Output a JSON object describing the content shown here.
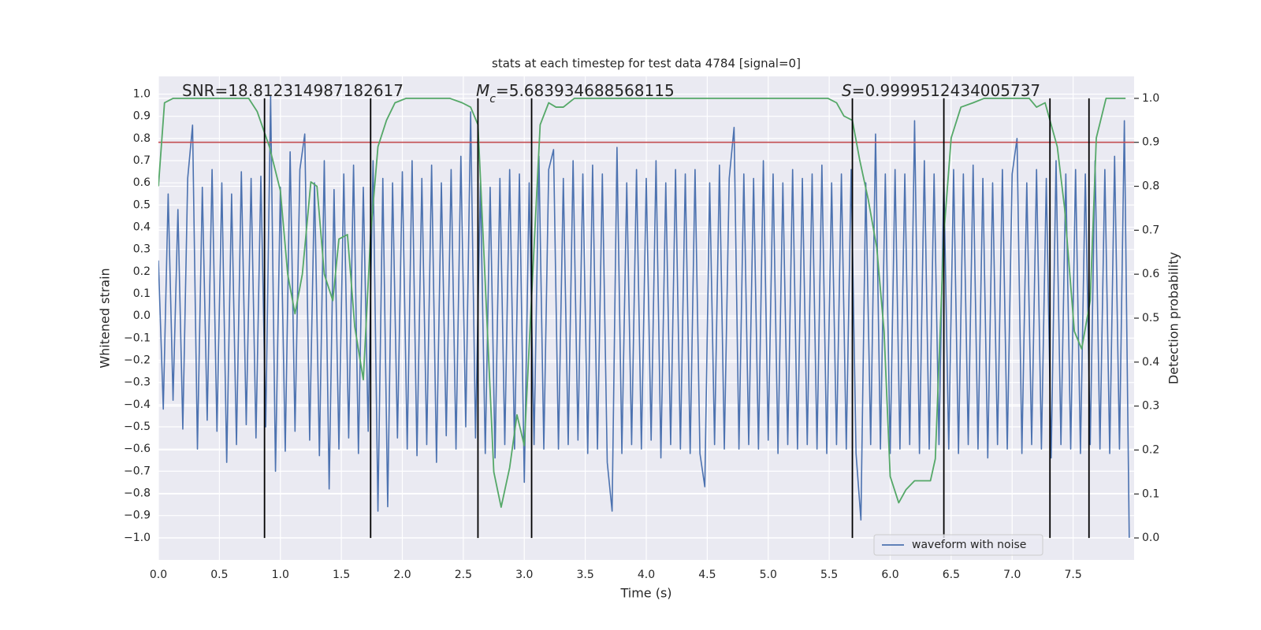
{
  "chart_data": {
    "type": "line",
    "title": "stats at each timestep for test data 4784 [signal=0]",
    "xlabel": "Time (s)",
    "ylabel": "Whitened strain",
    "y2label": "Detection probability",
    "xlim": [
      0,
      8
    ],
    "ylim": [
      -1.1,
      1.08
    ],
    "y2lim": [
      -0.05,
      1.05
    ],
    "xticks": [
      {
        "value": 0,
        "label": "0.0"
      },
      {
        "value": 0.5,
        "label": "0.5"
      },
      {
        "value": 1,
        "label": "1.0"
      },
      {
        "value": 1.5,
        "label": "1.5"
      },
      {
        "value": 2,
        "label": "2.0"
      },
      {
        "value": 2.5,
        "label": "2.5"
      },
      {
        "value": 3,
        "label": "3.0"
      },
      {
        "value": 3.5,
        "label": "3.5"
      },
      {
        "value": 4,
        "label": "4.0"
      },
      {
        "value": 4.5,
        "label": "4.5"
      },
      {
        "value": 5,
        "label": "5.0"
      },
      {
        "value": 5.5,
        "label": "5.5"
      },
      {
        "value": 6,
        "label": "6.0"
      },
      {
        "value": 6.5,
        "label": "6.5"
      },
      {
        "value": 7,
        "label": "7.0"
      },
      {
        "value": 7.5,
        "label": "7.5"
      }
    ],
    "yticks": [
      {
        "value": -1,
        "label": "−1.0"
      },
      {
        "value": -0.9,
        "label": "−0.9"
      },
      {
        "value": -0.8,
        "label": "−0.8"
      },
      {
        "value": -0.7,
        "label": "−0.7"
      },
      {
        "value": -0.6,
        "label": "−0.6"
      },
      {
        "value": -0.5,
        "label": "−0.5"
      },
      {
        "value": -0.4,
        "label": "−0.4"
      },
      {
        "value": -0.3,
        "label": "−0.3"
      },
      {
        "value": -0.2,
        "label": "−0.2"
      },
      {
        "value": -0.1,
        "label": "−0.1"
      },
      {
        "value": 0,
        "label": "0.0"
      },
      {
        "value": 0.1,
        "label": "0.1"
      },
      {
        "value": 0.2,
        "label": "0.2"
      },
      {
        "value": 0.3,
        "label": "0.3"
      },
      {
        "value": 0.4,
        "label": "0.4"
      },
      {
        "value": 0.5,
        "label": "0.5"
      },
      {
        "value": 0.6,
        "label": "0.6"
      },
      {
        "value": 0.7,
        "label": "0.7"
      },
      {
        "value": 0.8,
        "label": "0.8"
      },
      {
        "value": 0.9,
        "label": "0.9"
      },
      {
        "value": 1,
        "label": "1.0"
      }
    ],
    "y2ticks": [
      {
        "value": 0,
        "label": "0.0"
      },
      {
        "value": 0.1,
        "label": "0.1"
      },
      {
        "value": 0.2,
        "label": "0.2"
      },
      {
        "value": 0.3,
        "label": "0.3"
      },
      {
        "value": 0.4,
        "label": "0.4"
      },
      {
        "value": 0.5,
        "label": "0.5"
      },
      {
        "value": 0.6,
        "label": "0.6"
      },
      {
        "value": 0.7,
        "label": "0.7"
      },
      {
        "value": 0.8,
        "label": "0.8"
      },
      {
        "value": 0.9,
        "label": "0.9"
      },
      {
        "value": 1,
        "label": "1.0"
      }
    ],
    "grid": true,
    "legend": "lower right",
    "annotations": [
      {
        "parts": [
          {
            "text": "SNR=18.812314987182617"
          }
        ]
      },
      {
        "parts": [
          {
            "text": "M",
            "italic": true
          },
          {
            "text": "c",
            "italic": true,
            "sub": true
          },
          {
            "text": "=5.683934688568115"
          }
        ]
      },
      {
        "parts": [
          {
            "text": "S",
            "italic": true
          },
          {
            "text": "=0.9999512434005737"
          }
        ]
      }
    ],
    "threshold": {
      "value": 0.9,
      "axis": "y2",
      "color": "#c44e52"
    },
    "vlines": {
      "x": [
        0.87,
        1.74,
        2.62,
        3.06,
        5.69,
        6.44,
        7.31,
        7.63
      ],
      "range": [
        0,
        1
      ],
      "axis": "y2",
      "color": "#000000"
    },
    "series": [
      {
        "name": "waveform with noise",
        "color": "#4c72b0",
        "x": [
          0,
          0.04,
          0.08,
          0.12,
          0.16,
          0.2,
          0.24,
          0.28,
          0.32,
          0.36,
          0.4,
          0.44,
          0.48,
          0.52,
          0.56,
          0.6,
          0.64,
          0.68,
          0.72,
          0.76,
          0.8,
          0.84,
          0.88,
          0.92,
          0.96,
          1,
          1.04,
          1.08,
          1.12,
          1.16,
          1.2,
          1.24,
          1.28,
          1.32,
          1.36,
          1.4,
          1.44,
          1.48,
          1.52,
          1.56,
          1.6,
          1.64,
          1.68,
          1.72,
          1.76,
          1.8,
          1.84,
          1.88,
          1.92,
          1.96,
          2,
          2.04,
          2.08,
          2.12,
          2.16,
          2.2,
          2.24,
          2.28,
          2.32,
          2.36,
          2.4,
          2.44,
          2.48,
          2.52,
          2.56,
          2.6,
          2.64,
          2.68,
          2.72,
          2.76,
          2.8,
          2.84,
          2.88,
          2.92,
          2.96,
          3,
          3.04,
          3.08,
          3.12,
          3.16,
          3.2,
          3.24,
          3.28,
          3.32,
          3.36,
          3.4,
          3.44,
          3.48,
          3.52,
          3.56,
          3.6,
          3.64,
          3.68,
          3.72,
          3.76,
          3.8,
          3.84,
          3.88,
          3.92,
          3.96,
          4,
          4.04,
          4.08,
          4.12,
          4.16,
          4.2,
          4.24,
          4.28,
          4.32,
          4.36,
          4.4,
          4.44,
          4.48,
          4.52,
          4.56,
          4.6,
          4.64,
          4.68,
          4.72,
          4.76,
          4.8,
          4.84,
          4.88,
          4.92,
          4.96,
          5,
          5.04,
          5.08,
          5.12,
          5.16,
          5.2,
          5.24,
          5.28,
          5.32,
          5.36,
          5.4,
          5.44,
          5.48,
          5.52,
          5.56,
          5.6,
          5.64,
          5.68,
          5.72,
          5.76,
          5.8,
          5.84,
          5.88,
          5.92,
          5.96,
          6,
          6.04,
          6.08,
          6.12,
          6.16,
          6.2,
          6.24,
          6.28,
          6.32,
          6.36,
          6.4,
          6.44,
          6.48,
          6.52,
          6.56,
          6.6,
          6.64,
          6.68,
          6.72,
          6.76,
          6.8,
          6.84,
          6.88,
          6.92,
          6.96,
          7,
          7.04,
          7.08,
          7.12,
          7.16,
          7.2,
          7.24,
          7.28,
          7.32,
          7.36,
          7.4,
          7.44,
          7.48,
          7.52,
          7.56,
          7.6,
          7.64,
          7.68,
          7.72,
          7.76,
          7.8,
          7.84,
          7.88,
          7.92,
          7.96
        ],
        "values": [
          0.25,
          -0.42,
          0.55,
          -0.38,
          0.48,
          -0.51,
          0.62,
          0.86,
          -0.6,
          0.58,
          -0.47,
          0.66,
          -0.52,
          0.6,
          -0.66,
          0.55,
          -0.58,
          0.65,
          -0.49,
          0.62,
          -0.55,
          0.63,
          -0.5,
          0.99,
          -0.7,
          0.58,
          -0.61,
          0.74,
          -0.52,
          0.66,
          0.82,
          -0.56,
          0.6,
          -0.63,
          0.7,
          -0.78,
          0.57,
          -0.6,
          0.64,
          -0.55,
          0.68,
          -0.62,
          0.58,
          -0.52,
          0.7,
          -0.88,
          0.62,
          -0.86,
          0.6,
          -0.55,
          0.65,
          -0.6,
          0.7,
          -0.63,
          0.62,
          -0.58,
          0.68,
          -0.66,
          0.6,
          -0.54,
          0.66,
          -0.6,
          0.72,
          -0.5,
          0.92,
          -0.55,
          0.6,
          -0.62,
          0.58,
          -0.64,
          0.62,
          -0.58,
          0.66,
          -0.6,
          0.64,
          -0.75,
          0.6,
          -0.58,
          0.72,
          -0.6,
          0.66,
          0.75,
          -0.6,
          0.62,
          -0.58,
          0.7,
          -0.56,
          0.64,
          -0.62,
          0.68,
          -0.6,
          0.64,
          -0.66,
          -0.88,
          0.76,
          -0.62,
          0.6,
          -0.58,
          0.66,
          -0.6,
          0.62,
          -0.56,
          0.7,
          -0.64,
          0.6,
          -0.58,
          0.66,
          -0.6,
          0.64,
          -0.62,
          0.66,
          -0.62,
          -0.77,
          0.6,
          -0.58,
          0.68,
          -0.6,
          0.62,
          0.85,
          -0.6,
          0.64,
          -0.58,
          0.62,
          -0.6,
          0.7,
          -0.56,
          0.64,
          -0.62,
          0.6,
          -0.58,
          0.66,
          -0.6,
          0.62,
          -0.58,
          0.64,
          -0.6,
          0.68,
          -0.62,
          0.6,
          -0.58,
          0.64,
          -0.6,
          0.66,
          -0.62,
          -0.92,
          0.6,
          -0.58,
          0.82,
          -0.6,
          0.64,
          -0.62,
          0.66,
          -0.6,
          0.64,
          -0.58,
          0.88,
          -0.62,
          0.7,
          -0.6,
          0.64,
          -0.58,
          0.62,
          -0.6,
          0.66,
          -0.62,
          0.64,
          -0.58,
          0.68,
          -0.6,
          0.62,
          -0.64,
          0.6,
          -0.58,
          0.66,
          -0.6,
          0.64,
          0.8,
          -0.62,
          0.6,
          -0.58,
          0.66,
          -0.6,
          0.62,
          -0.64,
          0.7,
          -0.58,
          0.64,
          -0.6,
          0.66,
          -0.62,
          0.64,
          -0.58,
          0.7,
          -0.6,
          0.66,
          -0.62,
          0.72,
          -0.6,
          0.88,
          -1.0
        ]
      },
      {
        "color": "#55a868",
        "axis": "y2",
        "x": [
          0,
          0.05,
          0.12,
          0.74,
          0.81,
          0.91,
          1.0,
          1.06,
          1.12,
          1.18,
          1.25,
          1.3,
          1.36,
          1.43,
          1.48,
          1.55,
          1.61,
          1.68,
          1.74,
          1.8,
          1.87,
          1.94,
          2.03,
          2.39,
          2.49,
          2.56,
          2.62,
          2.67,
          2.75,
          2.81,
          2.88,
          2.94,
          3.0,
          3.06,
          3.13,
          3.2,
          3.26,
          3.32,
          3.41,
          4.3,
          4.63,
          4.96,
          5.29,
          5.49,
          5.56,
          5.62,
          5.69,
          5.75,
          5.82,
          5.89,
          5.95,
          6.0,
          6.07,
          6.13,
          6.2,
          6.26,
          6.33,
          6.37,
          6.44,
          6.5,
          6.58,
          6.68,
          6.77,
          7.14,
          7.2,
          7.27,
          7.37,
          7.43,
          7.51,
          7.57,
          7.64,
          7.69,
          7.77,
          7.93
        ],
        "values": [
          0.8,
          0.99,
          1.0,
          1.0,
          0.97,
          0.89,
          0.79,
          0.6,
          0.51,
          0.6,
          0.81,
          0.8,
          0.6,
          0.54,
          0.68,
          0.69,
          0.48,
          0.36,
          0.69,
          0.89,
          0.95,
          0.99,
          1.0,
          1.0,
          0.99,
          0.98,
          0.94,
          0.64,
          0.15,
          0.07,
          0.16,
          0.28,
          0.21,
          0.55,
          0.94,
          0.99,
          0.98,
          0.98,
          1.0,
          1.0,
          1.0,
          1.0,
          1.0,
          1.0,
          0.99,
          0.96,
          0.95,
          0.86,
          0.77,
          0.66,
          0.47,
          0.14,
          0.08,
          0.11,
          0.13,
          0.13,
          0.13,
          0.18,
          0.69,
          0.91,
          0.98,
          0.99,
          1.0,
          1.0,
          0.98,
          0.99,
          0.89,
          0.75,
          0.47,
          0.43,
          0.54,
          0.91,
          1.0,
          1.0
        ]
      }
    ]
  }
}
